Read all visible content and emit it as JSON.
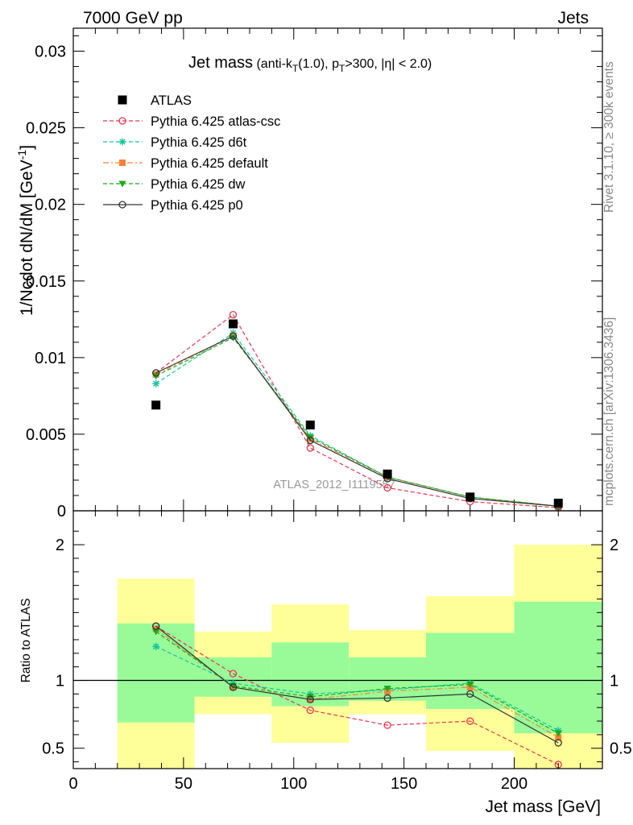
{
  "header": {
    "left": "7000 GeV pp",
    "right": "Jets"
  },
  "side_labels": {
    "rivet": "Rivet 3.1.10, ≥ 300k events",
    "mcplots": "mcplots.cern.ch [arXiv:1306.3436]"
  },
  "chart_data": [
    {
      "type": "scatter",
      "panel": "main",
      "title": "Jet mass",
      "title_detail": {
        "pre": "(anti-k",
        "sub1": "T",
        "mid1": "(1.0), p",
        "sub2": "T",
        "post": ">300, |η| < 2.0)"
      },
      "ylabel": "1/Ncdot dN/dM [GeV",
      "ylabel_sup": "-1",
      "ylabel_close": "]",
      "xlim": [
        0,
        240
      ],
      "ylim": [
        0,
        0.0315
      ],
      "y_ticks": [
        {
          "v": 0,
          "label": "0"
        },
        {
          "v": 0.005,
          "label": "0.005"
        },
        {
          "v": 0.01,
          "label": "0.01"
        },
        {
          "v": 0.015,
          "label": "0.015"
        },
        {
          "v": 0.02,
          "label": "0.02"
        },
        {
          "v": 0.025,
          "label": "0.025"
        },
        {
          "v": 0.03,
          "label": "0.03"
        }
      ],
      "x": [
        37.5,
        72.5,
        107.5,
        142.5,
        180,
        220
      ],
      "bin_edges": [
        20,
        55,
        90,
        125,
        160,
        200,
        240
      ],
      "watermark": "ATLAS_2012_I1119557",
      "series": [
        {
          "name": "ATLAS",
          "values": [
            0.0069,
            0.0122,
            0.0056,
            0.0024,
            0.0009,
            0.0005
          ],
          "color": "#000000",
          "marker": "square",
          "line": "none"
        },
        {
          "name": "Pythia 6.425 atlas-csc",
          "values": [
            0.009,
            0.0128,
            0.0041,
            0.0015,
            0.0006,
            0.0002
          ],
          "color": "#e8374f",
          "marker": "open-circle",
          "line": "dashed"
        },
        {
          "name": "Pythia 6.425 d6t",
          "values": [
            0.0083,
            0.0116,
            0.0049,
            0.0022,
            0.0009,
            0.0003
          ],
          "color": "#17c4a0",
          "marker": "star",
          "line": "dashed"
        },
        {
          "name": "Pythia 6.425 default",
          "values": [
            0.0089,
            0.0114,
            0.0047,
            0.0022,
            0.0009,
            0.0003
          ],
          "color": "#f5823a",
          "marker": "filled-square",
          "line": "dashdot"
        },
        {
          "name": "Pythia 6.425 dw",
          "values": [
            0.0088,
            0.0113,
            0.0048,
            0.0022,
            0.0009,
            0.0003
          ],
          "color": "#1aaa1a",
          "marker": "filled-triangle-down",
          "line": "dashed"
        },
        {
          "name": "Pythia 6.425 p0",
          "values": [
            0.009,
            0.0114,
            0.0046,
            0.0021,
            0.0008,
            0.0003
          ],
          "color": "#333333",
          "marker": "open-circle",
          "line": "solid"
        }
      ]
    },
    {
      "type": "line",
      "panel": "ratio",
      "ylabel": "Ratio to ATLAS",
      "xlabel": "Jet mass [GeV]",
      "xlim": [
        0,
        240
      ],
      "ylim": [
        0.35,
        2.25
      ],
      "x_ticks": [
        {
          "v": 0,
          "label": "0"
        },
        {
          "v": 50,
          "label": "50"
        },
        {
          "v": 100,
          "label": "100"
        },
        {
          "v": 150,
          "label": "150"
        },
        {
          "v": 200,
          "label": "200"
        }
      ],
      "y_ticks": [
        {
          "v": 0.5,
          "label": "0.5"
        },
        {
          "v": 1,
          "label": "1"
        },
        {
          "v": 2,
          "label": "2"
        }
      ],
      "reference": 1,
      "x": [
        37.5,
        72.5,
        107.5,
        142.5,
        180,
        220
      ],
      "bands": [
        {
          "x0": 20,
          "x1": 55,
          "green": [
            0.69,
            1.42
          ],
          "yellow": [
            0.34,
            1.75
          ]
        },
        {
          "x0": 55,
          "x1": 90,
          "green": [
            0.88,
            1.17
          ],
          "yellow": [
            0.75,
            1.36
          ]
        },
        {
          "x0": 90,
          "x1": 125,
          "green": [
            0.81,
            1.28
          ],
          "yellow": [
            0.54,
            1.56
          ]
        },
        {
          "x0": 125,
          "x1": 160,
          "green": [
            0.85,
            1.17
          ],
          "yellow": [
            0.75,
            1.37
          ]
        },
        {
          "x0": 160,
          "x1": 200,
          "green": [
            0.79,
            1.35
          ],
          "yellow": [
            0.48,
            1.62
          ]
        },
        {
          "x0": 200,
          "x1": 240,
          "green": [
            0.61,
            1.58
          ],
          "yellow": [
            0.34,
            2.0
          ]
        }
      ],
      "series": [
        {
          "name": "Pythia 6.425 atlas-csc",
          "values": [
            1.4,
            1.05,
            0.78,
            0.67,
            0.7,
            0.38
          ],
          "color": "#e8374f",
          "marker": "open-circle",
          "line": "dashed"
        },
        {
          "name": "Pythia 6.425 d6t",
          "values": [
            1.25,
            0.98,
            0.9,
            0.93,
            0.98,
            0.63
          ],
          "color": "#17c4a0",
          "marker": "star",
          "line": "dashed"
        },
        {
          "name": "Pythia 6.425 default",
          "values": [
            1.38,
            0.95,
            0.86,
            0.92,
            0.95,
            0.58
          ],
          "color": "#f5823a",
          "marker": "filled-square",
          "line": "dashdot"
        },
        {
          "name": "Pythia 6.425 dw",
          "values": [
            1.36,
            0.96,
            0.88,
            0.94,
            0.97,
            0.61
          ],
          "color": "#1aaa1a",
          "marker": "filled-triangle-down",
          "line": "dashed"
        },
        {
          "name": "Pythia 6.425 p0",
          "values": [
            1.4,
            0.95,
            0.86,
            0.87,
            0.9,
            0.54
          ],
          "color": "#333333",
          "marker": "open-circle",
          "line": "solid"
        }
      ]
    }
  ]
}
